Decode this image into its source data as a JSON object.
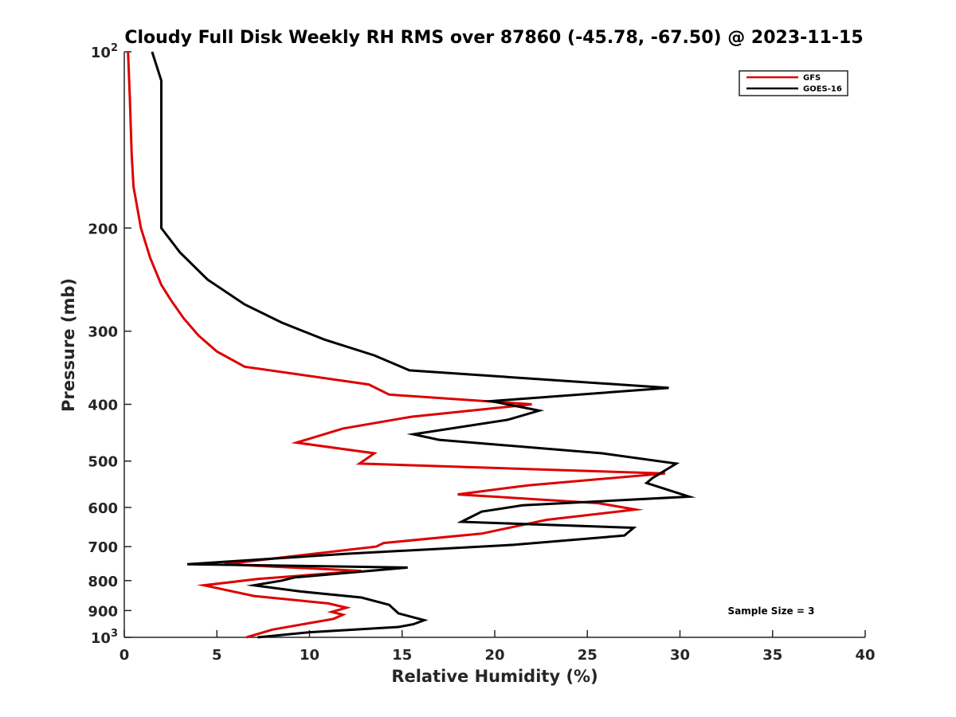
{
  "chart_data": {
    "type": "line",
    "title": "Cloudy Full Disk Weekly RH RMS over 87860 (-45.78, -67.50) @ 2023-11-15",
    "xlabel": "Relative Humidity (%)",
    "ylabel": "Pressure (mb)",
    "xlim": [
      0,
      40
    ],
    "ylim": [
      100,
      1000
    ],
    "y_scale": "log",
    "y_reversed": true,
    "x_ticks": [
      0,
      5,
      10,
      15,
      20,
      25,
      30,
      35,
      40
    ],
    "x_tick_labels": [
      "0",
      "5",
      "10",
      "15",
      "20",
      "25",
      "30",
      "35",
      "40"
    ],
    "y_ticks": [
      100,
      200,
      300,
      400,
      500,
      600,
      700,
      800,
      900,
      1000
    ],
    "y_tick_labels": [
      {
        "base": "10",
        "exp": "2"
      },
      {
        "base": "200"
      },
      {
        "base": "300"
      },
      {
        "base": "400"
      },
      {
        "base": "500"
      },
      {
        "base": "600"
      },
      {
        "base": "700"
      },
      {
        "base": "800"
      },
      {
        "base": "900"
      },
      {
        "base": "10",
        "exp": "3"
      }
    ],
    "grid": false,
    "legend_position": "top-right",
    "annotation": "Sample Size = 3",
    "series": [
      {
        "name": "GFS",
        "color": "#dd0000",
        "points": [
          [
            0.2,
            100
          ],
          [
            0.3,
            120
          ],
          [
            0.4,
            150
          ],
          [
            0.5,
            170
          ],
          [
            0.9,
            200
          ],
          [
            1.4,
            225
          ],
          [
            2.0,
            250
          ],
          [
            2.5,
            265
          ],
          [
            3.2,
            285
          ],
          [
            4.0,
            305
          ],
          [
            5.0,
            325
          ],
          [
            6.5,
            345
          ],
          [
            13.2,
            370
          ],
          [
            14.3,
            385
          ],
          [
            22.0,
            400
          ],
          [
            15.5,
            420
          ],
          [
            11.8,
            440
          ],
          [
            9.3,
            465
          ],
          [
            13.5,
            485
          ],
          [
            12.7,
            505
          ],
          [
            29.2,
            525
          ],
          [
            21.8,
            550
          ],
          [
            18.0,
            570
          ],
          [
            25.6,
            590
          ],
          [
            27.6,
            605
          ],
          [
            22.8,
            630
          ],
          [
            19.3,
            665
          ],
          [
            14.0,
            690
          ],
          [
            13.6,
            700
          ],
          [
            5.4,
            750
          ],
          [
            12.8,
            770
          ],
          [
            7.2,
            795
          ],
          [
            4.3,
            815
          ],
          [
            7.0,
            850
          ],
          [
            11.0,
            875
          ],
          [
            12.0,
            890
          ],
          [
            11.2,
            905
          ],
          [
            11.8,
            915
          ],
          [
            11.3,
            930
          ],
          [
            8.0,
            970
          ],
          [
            6.6,
            1000
          ]
        ]
      },
      {
        "name": "GOES-16",
        "color": "#000000",
        "points": [
          [
            1.5,
            100
          ],
          [
            2.0,
            112
          ],
          [
            2.0,
            150
          ],
          [
            2.0,
            200
          ],
          [
            3.0,
            220
          ],
          [
            4.5,
            245
          ],
          [
            6.5,
            270
          ],
          [
            8.5,
            290
          ],
          [
            10.8,
            310
          ],
          [
            13.5,
            330
          ],
          [
            15.4,
            350
          ],
          [
            29.4,
            375
          ],
          [
            19.8,
            395
          ],
          [
            22.4,
            410
          ],
          [
            20.7,
            425
          ],
          [
            15.6,
            450
          ],
          [
            17.0,
            460
          ],
          [
            25.8,
            485
          ],
          [
            29.8,
            505
          ],
          [
            28.5,
            535
          ],
          [
            28.2,
            545
          ],
          [
            30.5,
            575
          ],
          [
            21.5,
            595
          ],
          [
            19.3,
            610
          ],
          [
            18.2,
            635
          ],
          [
            27.5,
            650
          ],
          [
            27.0,
            670
          ],
          [
            21.0,
            695
          ],
          [
            12.0,
            720
          ],
          [
            3.4,
            750
          ],
          [
            15.3,
            760
          ],
          [
            9.2,
            790
          ],
          [
            8.5,
            800
          ],
          [
            7.0,
            815
          ],
          [
            9.5,
            835
          ],
          [
            12.8,
            855
          ],
          [
            14.3,
            880
          ],
          [
            14.8,
            910
          ],
          [
            16.2,
            935
          ],
          [
            15.6,
            950
          ],
          [
            14.8,
            960
          ],
          [
            10.0,
            980
          ],
          [
            7.2,
            1000
          ]
        ]
      }
    ]
  }
}
